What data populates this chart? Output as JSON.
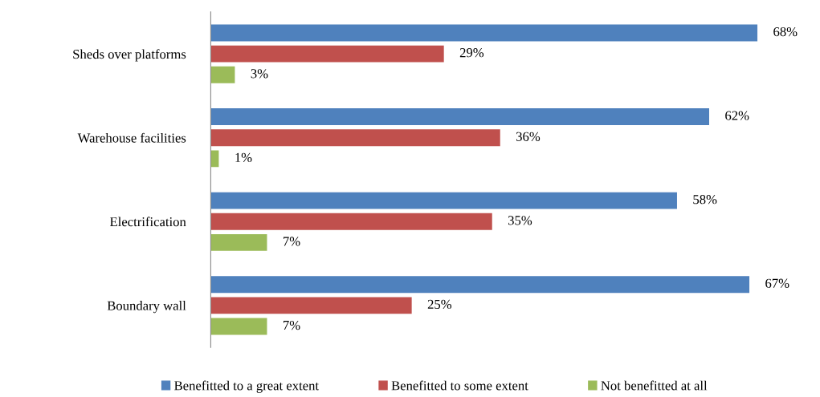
{
  "chart_data": {
    "type": "bar",
    "orientation": "horizontal",
    "categories": [
      "Sheds over platforms",
      "Warehouse facilities",
      "Electrification",
      "Boundary wall"
    ],
    "series": [
      {
        "name": "Benefitted to a great extent",
        "color": "#4f81bd",
        "values": [
          68,
          62,
          58,
          67
        ],
        "value_labels": [
          "68%",
          "62%",
          "58%",
          "67%"
        ]
      },
      {
        "name": "Benefitted to some extent",
        "color": "#c0504d",
        "values": [
          29,
          36,
          35,
          25
        ],
        "value_labels": [
          "29%",
          "36%",
          "35%",
          "25%"
        ]
      },
      {
        "name": "Not benefitted at all",
        "color": "#9bbb59",
        "values": [
          3,
          1,
          7,
          7
        ],
        "value_labels": [
          "3%",
          "1%",
          "7%",
          "7%"
        ]
      }
    ],
    "legend": "bottom",
    "grid": false
  }
}
